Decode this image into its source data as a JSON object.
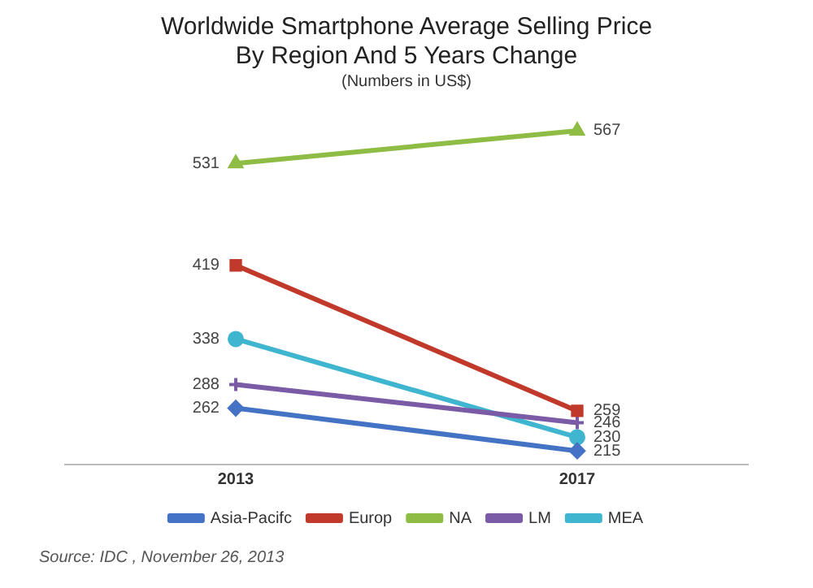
{
  "chart_data": {
    "type": "line",
    "title": [
      "Worldwide Smartphone Average Selling Price",
      "By Region And 5 Years Change"
    ],
    "subtitle": "(Numbers in US$)",
    "categories": [
      "2013",
      "2017"
    ],
    "series": [
      {
        "name": "Asia-Pacifc",
        "color": "#4472c4",
        "values": [
          262,
          215
        ],
        "marker": "diamond"
      },
      {
        "name": "Europ",
        "color": "#c0392b",
        "values": [
          419,
          259
        ],
        "marker": "square"
      },
      {
        "name": "NA",
        "color": "#8fbc45",
        "values": [
          531,
          567
        ],
        "marker": "triangle"
      },
      {
        "name": "LM",
        "color": "#7b5aa6",
        "values": [
          288,
          246
        ],
        "marker": "cross"
      },
      {
        "name": "MEA",
        "color": "#3fb5cf",
        "values": [
          338,
          230
        ],
        "marker": "circle"
      }
    ],
    "data_labels": true,
    "legend": "bottom",
    "grid": false,
    "line_style": "solid",
    "annotations": [
      "Source: IDC , November 26, 2013"
    ]
  }
}
